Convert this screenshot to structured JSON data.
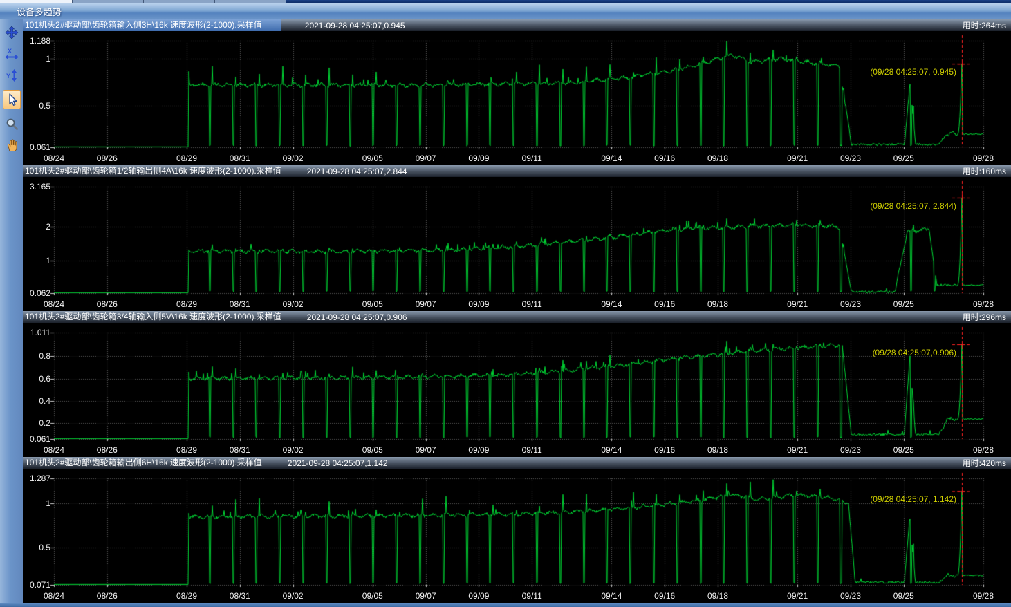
{
  "window": {
    "title": "设备多趋势"
  },
  "toolbar": {
    "tools": [
      {
        "id": "pan",
        "tooltip": "pan"
      },
      {
        "id": "x-zoom",
        "tooltip": "x-axis zoom"
      },
      {
        "id": "y-zoom",
        "tooltip": "y-axis zoom"
      },
      {
        "id": "select",
        "tooltip": "cursor select",
        "active": true
      },
      {
        "id": "zoom",
        "tooltip": "magnifier"
      },
      {
        "id": "hand",
        "tooltip": "hand drag"
      }
    ]
  },
  "colors": {
    "trace": "#00d935",
    "annotation": "#cfcf00",
    "cursor": "#ff2222",
    "grid": "#5c5c5c",
    "tick": "#cccccc",
    "plot_bg": "#000000"
  },
  "x_axis": {
    "max_day": 35,
    "ticks": [
      {
        "label": "08/24",
        "day": 0
      },
      {
        "label": "08/26",
        "day": 2
      },
      {
        "label": "08/29",
        "day": 5
      },
      {
        "label": "08/31",
        "day": 7
      },
      {
        "label": "09/02",
        "day": 9
      },
      {
        "label": "09/05",
        "day": 12
      },
      {
        "label": "09/07",
        "day": 14
      },
      {
        "label": "09/09",
        "day": 16
      },
      {
        "label": "09/11",
        "day": 18
      },
      {
        "label": "09/14",
        "day": 21
      },
      {
        "label": "09/16",
        "day": 23
      },
      {
        "label": "09/18",
        "day": 25
      },
      {
        "label": "09/21",
        "day": 28
      },
      {
        "label": "09/23",
        "day": 30
      },
      {
        "label": "09/25",
        "day": 32
      },
      {
        "label": "09/28",
        "day": 35
      }
    ]
  },
  "chart_data": [
    {
      "type": "line",
      "title": "101机头2#驱动部\\齿轮箱输入侧3H\\16k 速度波形(2-1000).采样值",
      "timestamp_value": "2021-09-28 04:25:07,0.945",
      "elapsed": "用时:264ms",
      "selected": true,
      "ymin": 0.061,
      "ymax": 1.188,
      "y_ticks": [
        {
          "value": 1.188,
          "label": "1.188"
        },
        {
          "value": 1,
          "label": "1"
        },
        {
          "value": 0.5,
          "label": "0.5"
        },
        {
          "value": 0.061,
          "label": "0.061"
        }
      ],
      "cursor": {
        "t": 0.977,
        "value": 0.945,
        "label": "(09/28 04:25:07, 0.945)"
      },
      "gen": {
        "start_t": 0.145,
        "plateau_end": 0.975,
        "cycles": 33,
        "overshoot": 0.18,
        "envelope": [
          [
            0.145,
            0.72
          ],
          [
            0.4,
            0.72
          ],
          [
            0.55,
            0.74
          ],
          [
            0.62,
            0.8
          ],
          [
            0.67,
            0.88
          ],
          [
            0.705,
            0.97
          ],
          [
            0.73,
            1.04
          ],
          [
            0.75,
            0.96
          ],
          [
            0.78,
            1.0
          ],
          [
            0.81,
            0.96
          ],
          [
            0.845,
            0.92
          ],
          [
            0.858,
            0.09
          ],
          [
            0.915,
            0.09
          ],
          [
            0.921,
            0.74
          ],
          [
            0.927,
            0.09
          ],
          [
            0.952,
            0.09
          ],
          [
            0.96,
            0.2
          ],
          [
            0.975,
            0.2
          ]
        ]
      }
    },
    {
      "type": "line",
      "title": "101机头2#驱动部\\齿轮箱1/2轴输出侧4A\\16k 速度波形(2-1000).采样值",
      "timestamp_value": "2021-09-28 04:25:07,2.844",
      "elapsed": "用时:160ms",
      "selected": false,
      "ymin": 0.062,
      "ymax": 3.165,
      "y_ticks": [
        {
          "value": 3.165,
          "label": "3.165"
        },
        {
          "value": 2,
          "label": "2"
        },
        {
          "value": 1,
          "label": "1"
        },
        {
          "value": 0.062,
          "label": "0.062"
        }
      ],
      "cursor": {
        "t": 0.977,
        "value": 2.844,
        "label": "(09/28 04:25:07, 2.844)"
      },
      "gen": {
        "start_t": 0.145,
        "plateau_end": 0.975,
        "cycles": 33,
        "overshoot": 0.06,
        "envelope": [
          [
            0.145,
            1.3
          ],
          [
            0.3,
            1.27
          ],
          [
            0.42,
            1.32
          ],
          [
            0.5,
            1.42
          ],
          [
            0.55,
            1.55
          ],
          [
            0.6,
            1.68
          ],
          [
            0.645,
            1.85
          ],
          [
            0.68,
            1.95
          ],
          [
            0.72,
            1.98
          ],
          [
            0.76,
            2.02
          ],
          [
            0.8,
            2.05
          ],
          [
            0.845,
            2.0
          ],
          [
            0.858,
            0.1
          ],
          [
            0.905,
            0.1
          ],
          [
            0.918,
            1.85
          ],
          [
            0.942,
            1.92
          ],
          [
            0.95,
            0.3
          ],
          [
            0.975,
            0.3
          ]
        ]
      }
    },
    {
      "type": "line",
      "title": "101机头2#驱动部\\齿轮箱3/4轴输入侧5V\\16k 速度波形(2-1000).采样值",
      "timestamp_value": "2021-09-28 04:25:07,0.906",
      "elapsed": "用时:296ms",
      "selected": false,
      "ymin": 0.061,
      "ymax": 1.011,
      "y_ticks": [
        {
          "value": 1.011,
          "label": "1.011"
        },
        {
          "value": 0.8,
          "label": "0.8"
        },
        {
          "value": 0.6,
          "label": "0.6"
        },
        {
          "value": 0.4,
          "label": "0.4"
        },
        {
          "value": 0.2,
          "label": "0.2"
        },
        {
          "value": 0.061,
          "label": "0.061"
        }
      ],
      "cursor": {
        "t": 0.977,
        "value": 0.906,
        "label": "(09/28 04:25:07,0.906)"
      },
      "gen": {
        "start_t": 0.145,
        "plateau_end": 0.975,
        "cycles": 33,
        "overshoot": 0.1,
        "envelope": [
          [
            0.145,
            0.6
          ],
          [
            0.35,
            0.61
          ],
          [
            0.48,
            0.63
          ],
          [
            0.55,
            0.67
          ],
          [
            0.61,
            0.72
          ],
          [
            0.66,
            0.77
          ],
          [
            0.71,
            0.81
          ],
          [
            0.75,
            0.85
          ],
          [
            0.79,
            0.87
          ],
          [
            0.83,
            0.89
          ],
          [
            0.848,
            0.9
          ],
          [
            0.858,
            0.1
          ],
          [
            0.915,
            0.1
          ],
          [
            0.921,
            0.8
          ],
          [
            0.927,
            0.1
          ],
          [
            0.952,
            0.1
          ],
          [
            0.962,
            0.24
          ],
          [
            0.975,
            0.24
          ]
        ]
      }
    },
    {
      "type": "line",
      "title": "101机头2#驱动部\\齿轮箱输出侧6H\\16k 速度波形(2-1000).采样值",
      "timestamp_value": "2021-09-28 04:25:07,1.142",
      "elapsed": "用时:420ms",
      "selected": false,
      "ymin": 0.071,
      "ymax": 1.287,
      "y_ticks": [
        {
          "value": 1.287,
          "label": "1.287"
        },
        {
          "value": 1,
          "label": "1"
        },
        {
          "value": 0.5,
          "label": "0.5"
        },
        {
          "value": 0.071,
          "label": "0.071"
        }
      ],
      "cursor": {
        "t": 0.977,
        "value": 1.142,
        "label": "(09/28 04:25:07, 1.142)"
      },
      "gen": {
        "start_t": 0.145,
        "plateau_end": 0.975,
        "cycles": 33,
        "overshoot": 0.18,
        "envelope": [
          [
            0.145,
            0.85
          ],
          [
            0.35,
            0.86
          ],
          [
            0.5,
            0.88
          ],
          [
            0.58,
            0.92
          ],
          [
            0.64,
            0.97
          ],
          [
            0.69,
            1.03
          ],
          [
            0.73,
            1.1
          ],
          [
            0.76,
            1.05
          ],
          [
            0.8,
            1.1
          ],
          [
            0.84,
            1.06
          ],
          [
            0.855,
            1.0
          ],
          [
            0.862,
            0.1
          ],
          [
            0.915,
            0.1
          ],
          [
            0.921,
            0.85
          ],
          [
            0.927,
            0.1
          ],
          [
            0.952,
            0.1
          ],
          [
            0.962,
            0.18
          ],
          [
            0.975,
            0.18
          ]
        ]
      }
    }
  ]
}
